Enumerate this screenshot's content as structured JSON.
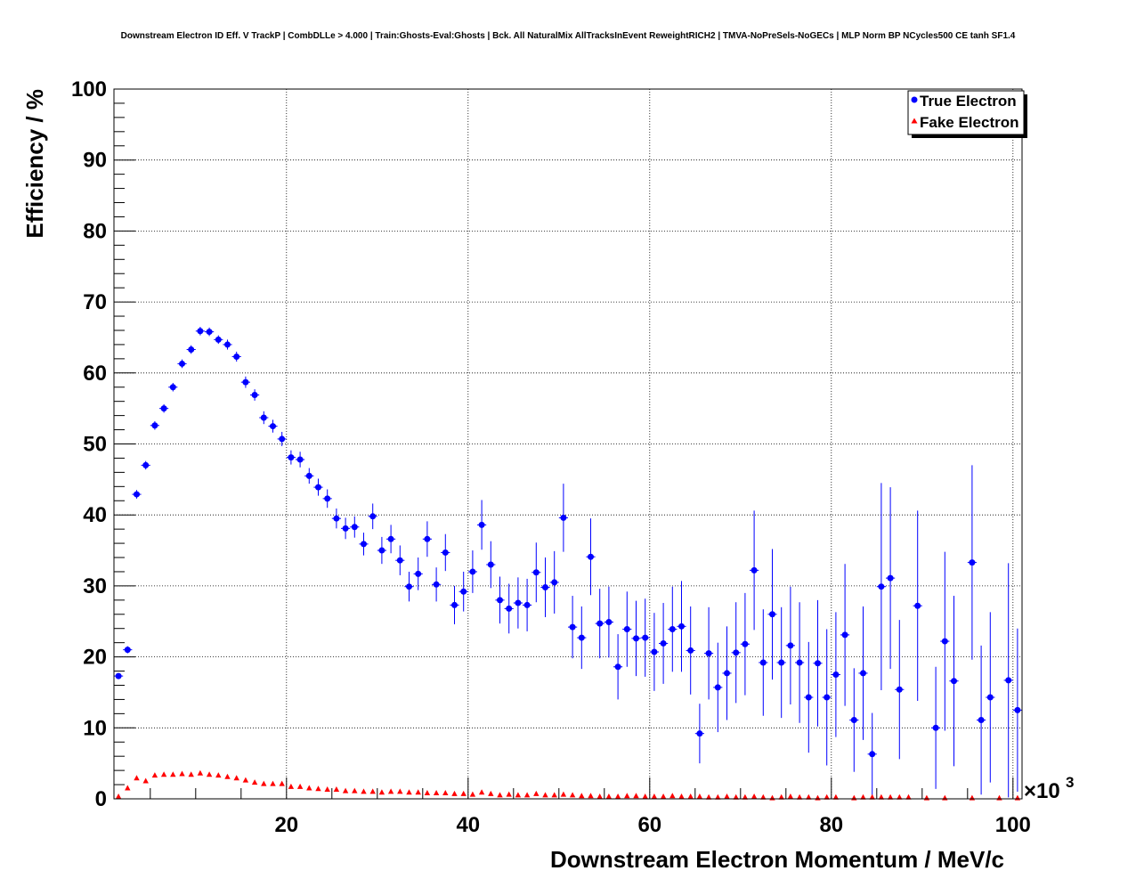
{
  "chart_data": {
    "type": "scatter",
    "title": "Downstream Electron ID Eff. V TrackP | CombDLLe > 4.000 | Train:Ghosts-Eval:Ghosts | Bck. All NaturalMix AllTracksInEvent ReweightRICH2 | TMVA-NoPreSels-NoGECs | MLP Norm BP NCycles500 CE tanh SF1.4",
    "xlabel": "Downstream Electron Momentum / MeV/c",
    "ylabel": "Efficiency / %",
    "x_exponent_label": "×10",
    "x_exponent_power": "3",
    "xlim": [
      1,
      101
    ],
    "ylim": [
      0,
      100
    ],
    "x_ticks": [
      "20",
      "40",
      "60",
      "80",
      "100"
    ],
    "y_ticks": [
      "0",
      "10",
      "20",
      "30",
      "40",
      "50",
      "60",
      "70",
      "80",
      "90",
      "100"
    ],
    "grid": true,
    "legend_position": "top-right",
    "series": [
      {
        "name": "True Electron",
        "color": "#0000ff",
        "marker": "circle",
        "x": [
          1.5,
          2.5,
          3.5,
          4.5,
          5.5,
          6.5,
          7.5,
          8.5,
          9.5,
          10.5,
          11.5,
          12.5,
          13.5,
          14.5,
          15.5,
          16.5,
          17.5,
          18.5,
          19.5,
          20.5,
          21.5,
          22.5,
          23.5,
          24.5,
          25.5,
          26.5,
          27.5,
          28.5,
          29.5,
          30.5,
          31.5,
          32.5,
          33.5,
          34.5,
          35.5,
          36.5,
          37.5,
          38.5,
          39.5,
          40.5,
          41.5,
          42.5,
          43.5,
          44.5,
          45.5,
          46.5,
          47.5,
          48.5,
          49.5,
          50.5,
          51.5,
          52.5,
          53.5,
          54.5,
          55.5,
          56.5,
          57.5,
          58.5,
          59.5,
          60.5,
          61.5,
          62.5,
          63.5,
          64.5,
          65.5,
          66.5,
          67.5,
          68.5,
          69.5,
          70.5,
          71.5,
          72.5,
          73.5,
          74.5,
          75.5,
          76.5,
          77.5,
          78.5,
          79.5,
          80.5,
          81.5,
          82.5,
          83.5,
          84.5,
          85.5,
          86.5,
          87.5,
          89.5,
          91.5,
          92.5,
          93.5,
          95.5,
          96.5,
          97.5,
          99.5,
          100.5
        ],
        "y": [
          17.3,
          21.0,
          42.9,
          47.0,
          52.6,
          55.0,
          58.0,
          61.3,
          63.3,
          65.9,
          65.8,
          64.7,
          64.0,
          62.3,
          58.7,
          56.9,
          53.7,
          52.5,
          50.7,
          48.1,
          47.8,
          45.5,
          43.9,
          42.3,
          39.5,
          38.1,
          38.3,
          35.9,
          39.8,
          35.0,
          36.6,
          33.6,
          29.9,
          31.7,
          36.6,
          30.2,
          34.7,
          27.3,
          29.2,
          32.0,
          38.6,
          33.0,
          28.0,
          26.8,
          27.6,
          27.3,
          31.9,
          29.8,
          30.5,
          39.6,
          24.2,
          22.7,
          34.1,
          24.7,
          24.9,
          18.6,
          23.9,
          22.6,
          22.7,
          20.7,
          21.9,
          23.9,
          24.3,
          20.9,
          9.2,
          20.5,
          15.7,
          17.7,
          20.6,
          21.8,
          32.2,
          19.2,
          26.0,
          19.2,
          21.6,
          19.2,
          14.3,
          19.1,
          14.3,
          17.5,
          23.1,
          11.1,
          17.7,
          6.3,
          29.9,
          31.1,
          15.4,
          27.2,
          10.0,
          22.2,
          16.6,
          33.3,
          11.1,
          14.3,
          16.7,
          12.5
        ],
        "yerr": [
          0.4,
          0.5,
          0.6,
          0.6,
          0.6,
          0.6,
          0.6,
          0.6,
          0.6,
          0.6,
          0.6,
          0.6,
          0.7,
          0.7,
          0.8,
          0.8,
          0.9,
          0.9,
          1.0,
          1.0,
          1.1,
          1.1,
          1.2,
          1.3,
          1.4,
          1.5,
          1.5,
          1.6,
          1.8,
          1.9,
          2.0,
          2.1,
          2.1,
          2.3,
          2.5,
          2.4,
          2.6,
          2.7,
          2.8,
          3.0,
          3.5,
          3.3,
          3.3,
          3.5,
          3.6,
          3.7,
          4.2,
          4.2,
          4.4,
          4.8,
          4.4,
          4.4,
          5.4,
          4.9,
          5.0,
          4.6,
          5.3,
          5.3,
          5.5,
          5.5,
          5.7,
          6.0,
          6.4,
          6.2,
          4.2,
          6.5,
          6.3,
          6.6,
          7.1,
          7.2,
          8.4,
          7.5,
          9.2,
          7.8,
          8.3,
          8.5,
          7.8,
          8.9,
          9.6,
          8.8,
          10.0,
          7.3,
          9.4,
          5.8,
          14.6,
          12.8,
          9.8,
          13.4,
          8.6,
          12.6,
          12.0,
          13.7,
          10.5,
          12.0,
          16.5,
          11.5
        ]
      },
      {
        "name": "Fake Electron",
        "color": "#ff0000",
        "marker": "triangle",
        "x": [
          1.5,
          2.5,
          3.5,
          4.5,
          5.5,
          6.5,
          7.5,
          8.5,
          9.5,
          10.5,
          11.5,
          12.5,
          13.5,
          14.5,
          15.5,
          16.5,
          17.5,
          18.5,
          19.5,
          20.5,
          21.5,
          22.5,
          23.5,
          24.5,
          25.5,
          26.5,
          27.5,
          28.5,
          29.5,
          30.5,
          31.5,
          32.5,
          33.5,
          34.5,
          35.5,
          36.5,
          37.5,
          38.5,
          39.5,
          40.5,
          41.5,
          42.5,
          43.5,
          44.5,
          45.5,
          46.5,
          47.5,
          48.5,
          49.5,
          50.5,
          51.5,
          52.5,
          53.5,
          54.5,
          55.5,
          56.5,
          57.5,
          58.5,
          59.5,
          60.5,
          61.5,
          62.5,
          63.5,
          64.5,
          65.5,
          66.5,
          67.5,
          68.5,
          69.5,
          70.5,
          71.5,
          72.5,
          73.5,
          74.5,
          75.5,
          76.5,
          77.5,
          78.5,
          79.5,
          80.5,
          82.5,
          83.5,
          84.5,
          85.5,
          86.5,
          87.5,
          88.5,
          90.5,
          92.5,
          95.5,
          98.5,
          100.5
        ],
        "y": [
          0.3,
          1.5,
          2.9,
          2.5,
          3.3,
          3.4,
          3.4,
          3.5,
          3.4,
          3.6,
          3.4,
          3.3,
          3.1,
          2.9,
          2.6,
          2.3,
          2.1,
          2.1,
          2.1,
          1.7,
          1.7,
          1.5,
          1.4,
          1.3,
          1.3,
          1.1,
          1.1,
          1.0,
          1.0,
          0.9,
          1.0,
          1.0,
          0.9,
          0.9,
          0.8,
          0.8,
          0.8,
          0.7,
          0.7,
          0.6,
          0.9,
          0.7,
          0.5,
          0.6,
          0.5,
          0.5,
          0.7,
          0.5,
          0.5,
          0.6,
          0.5,
          0.4,
          0.4,
          0.3,
          0.3,
          0.3,
          0.4,
          0.4,
          0.3,
          0.3,
          0.3,
          0.4,
          0.3,
          0.3,
          0.3,
          0.2,
          0.2,
          0.3,
          0.2,
          0.2,
          0.3,
          0.2,
          0.1,
          0.2,
          0.3,
          0.2,
          0.2,
          0.1,
          0.2,
          0.2,
          0.1,
          0.2,
          0.2,
          0.2,
          0.2,
          0.2,
          0.2,
          0.1,
          0.1,
          0.1,
          0.1,
          0.1
        ]
      }
    ]
  }
}
